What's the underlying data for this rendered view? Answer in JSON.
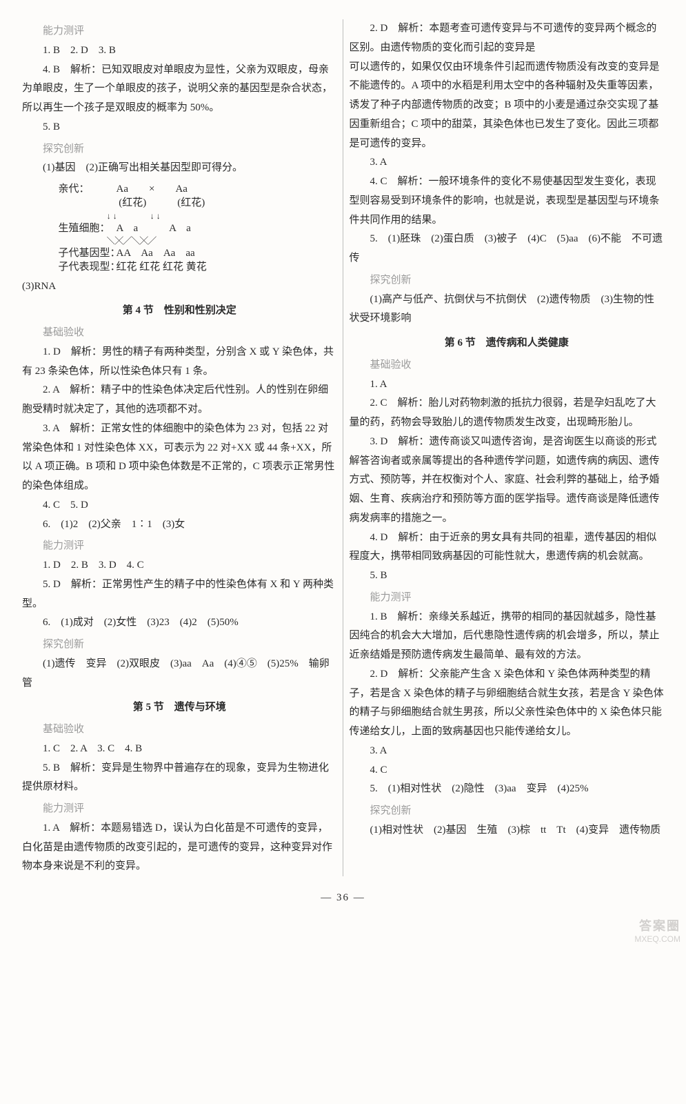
{
  "left": {
    "sec_a_label": "能力测评",
    "a1": "1. B　2. D　3. B",
    "a4": "4. B　解析：已知双眼皮对单眼皮为显性，父亲为双眼皮，母亲为单眼皮，生了一个单眼皮的孩子，说明父亲的基因型是杂合状态，所以再生一个孩子是双眼皮的概率为 50%。",
    "a5": "5. B",
    "sec_b_label": "探究创新",
    "b1": "(1)基因　(2)正确写出相关基因型即可得分。",
    "diagram": {
      "row1_label": "亲代：",
      "row1_pair": "Aa　　×　　Aa",
      "row1_note_l": "(红花)",
      "row1_note_r": "(红花)",
      "row2_label": "生殖细胞：",
      "row2_cells": "A　a　　　A　a",
      "row3_label": "子代基因型：",
      "row3": "AA　Aa　Aa　aa",
      "row4_label": "子代表现型：",
      "row4": "红花 红花 红花 黄花"
    },
    "b3": "(3)RNA",
    "h4": "第 4 节　性别和性别决定",
    "s4a_label": "基础验收",
    "s4a1": "1. D　解析：男性的精子有两种类型，分别含 X 或 Y 染色体，共有 23 条染色体，所以性染色体只有 1 条。",
    "s4a2": "2. A　解析：精子中的性染色体决定后代性别。人的性别在卵细胞受精时就决定了，其他的选项都不对。",
    "s4a3": "3. A　解析：正常女性的体细胞中的染色体为 23 对，包括 22 对常染色体和 1 对性染色体 XX，可表示为 22 对+XX 或 44 条+XX，所以 A 项正确。B 项和 D 项中染色体数是不正常的，C 项表示正常男性的染色体组成。",
    "s4a4": "4. C　5. D",
    "s4a6": "6.　(1)2　(2)父亲　1∶1　(3)女",
    "s4b_label": "能力测评",
    "s4b1": "1. D　2. B　3. D　4. C",
    "s4b5": "5. D　解析：正常男性产生的精子中的性染色体有 X 和 Y 两种类型。",
    "s4b6": "6.　(1)成对　(2)女性　(3)23　(4)2　(5)50%",
    "s4c_label": "探究创新",
    "s4c1": "(1)遗传　变异　(2)双眼皮　(3)aa　Aa　(4)④⑤　(5)25%　输卵管",
    "h5": "第 5 节　遗传与环境",
    "s5a_label": "基础验收",
    "s5a1": "1. C　2. A　3. C　4. B",
    "s5a5": "5. B　解析：变异是生物界中普遍存在的现象，变异为生物进化提供原材料。",
    "s5b_label": "能力测评",
    "s5b1": "1. A　解析：本题易错选 D，误认为白化苗是不可遗传的变异，白化苗是由遗传物质的改变引起的，是可遗传的变异，这种变异对作物本身来说是不利的变异。",
    "s5b2": "2. D　解析：本题考查可遗传变异与不可遗传的变异两个概念的区别。由遗传物质的变化而引起的变异是"
  },
  "right": {
    "cont": "可以遗传的，如果仅仅由环境条件引起而遗传物质没有改变的变异是不能遗传的。A 项中的水稻是利用太空中的各种辐射及失重等因素，诱发了种子内部遗传物质的改变；B 项中的小麦是通过杂交实现了基因重新组合；C 项中的甜菜，其染色体也已发生了变化。因此三项都是可遗传的变异。",
    "r3": "3. A",
    "r4": "4. C　解析：一般环境条件的变化不易使基因型发生变化，表现型则容易受到环境条件的影响，也就是说，表现型是基因型与环境条件共同作用的结果。",
    "r5": "5.　(1)胚珠　(2)蛋白质　(3)被子　(4)C　(5)aa　(6)不能　不可遗传",
    "rc_label": "探究创新",
    "rc1": "(1)高产与低产、抗倒伏与不抗倒伏　(2)遗传物质　(3)生物的性状受环境影响",
    "h6": "第 6 节　遗传病和人类健康",
    "s6a_label": "基础验收",
    "s6a1": "1. A",
    "s6a2": "2. C　解析：胎儿对药物刺激的抵抗力很弱，若是孕妇乱吃了大量的药，药物会导致胎儿的遗传物质发生改变，出现畸形胎儿。",
    "s6a3": "3. D　解析：遗传商谈又叫遗传咨询，是咨询医生以商谈的形式解答咨询者或亲属等提出的各种遗传学问题，如遗传病的病因、遗传方式、预防等，并在权衡对个人、家庭、社会利弊的基础上，给予婚姻、生育、疾病治疗和预防等方面的医学指导。遗传商谈是降低遗传病发病率的措施之一。",
    "s6a4": "4. D　解析：由于近亲的男女具有共同的祖辈，遗传基因的相似程度大，携带相同致病基因的可能性就大，患遗传病的机会就高。",
    "s6a5": "5. B",
    "s6b_label": "能力测评",
    "s6b1": "1. B　解析：亲缘关系越近，携带的相同的基因就越多，隐性基因纯合的机会大大增加，后代患隐性遗传病的机会增多，所以，禁止近亲结婚是预防遗传病发生最简单、最有效的方法。",
    "s6b2": "2. D　解析：父亲能产生含 X 染色体和 Y 染色体两种类型的精子，若是含 X 染色体的精子与卵细胞结合就生女孩，若是含 Y 染色体的精子与卵细胞结合就生男孩，所以父亲性染色体中的 X 染色体只能传递给女儿，上面的致病基因也只能传递给女儿。",
    "s6b3": "3. A",
    "s6b4": "4. C",
    "s6b5": "5.　(1)相对性状　(2)隐性　(3)aa　变异　(4)25%",
    "s6c_label": "探究创新",
    "s6c1": "(1)相对性状　(2)基因　生殖　(3)棕　tt　Tt　(4)变异　遗传物质"
  },
  "pagenum": "— 36 —",
  "wm_top": "答案圈",
  "wm_url": "MXEQ.COM"
}
